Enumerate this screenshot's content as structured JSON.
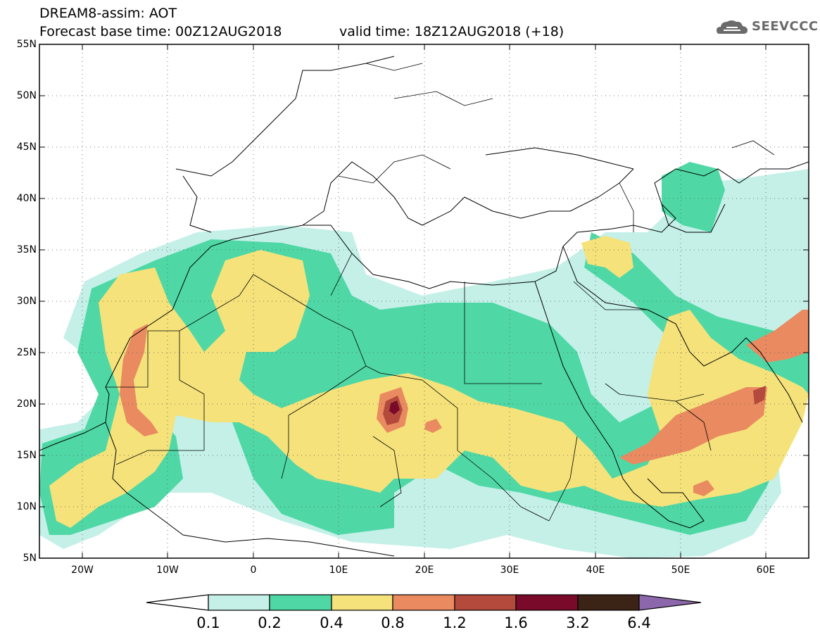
{
  "header": {
    "title_line1": "DREAM8-assim: AOT",
    "title_line2": "Forecast base time: 00Z12AUG2018",
    "valid_time": "valid time: 18Z12AUG2018 (+18)",
    "logo_text": "SEEVCCC"
  },
  "map": {
    "lat_labels": [
      "55N",
      "50N",
      "45N",
      "40N",
      "35N",
      "30N",
      "25N",
      "20N",
      "15N",
      "10N",
      "5N"
    ],
    "lon_labels": [
      "20W",
      "10W",
      "0",
      "10E",
      "20E",
      "30E",
      "40E",
      "50E",
      "60E"
    ],
    "lat_range": [
      5,
      55
    ],
    "lon_range": [
      -25,
      65
    ],
    "grid": "dotted",
    "field": "AOT"
  },
  "colorbar": {
    "labels": [
      "0.1",
      "0.2",
      "0.4",
      "0.8",
      "1.2",
      "1.6",
      "3.2",
      "6.4"
    ],
    "colors": [
      "#ffffff",
      "#c4f0e8",
      "#4fd8a6",
      "#f5e27a",
      "#e98a60",
      "#b34a3c",
      "#7a0a2a",
      "#3b2415",
      "#8c67ab"
    ]
  }
}
